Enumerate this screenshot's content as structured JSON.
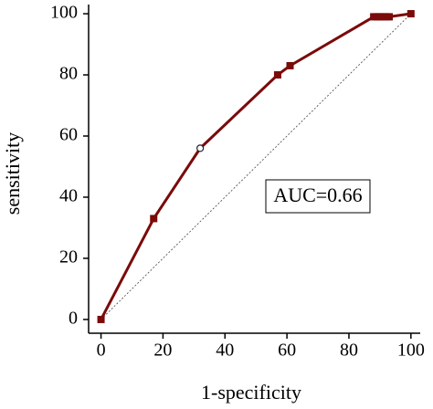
{
  "chart_data": {
    "type": "line",
    "xlabel": "1-specificity",
    "ylabel": "sensitivity",
    "annotation": "AUC=0.66",
    "x": [
      0,
      17,
      32,
      57,
      61,
      88,
      89,
      90,
      91,
      92,
      93,
      100
    ],
    "values": [
      0,
      33,
      56,
      80,
      83,
      99,
      99,
      99,
      99,
      99,
      99,
      100
    ],
    "hollow_marker_index": 2,
    "color": "#7b0a0a",
    "xlim": [
      -4,
      103
    ],
    "ylim": [
      -4.5,
      103
    ],
    "xticks": [
      0,
      20,
      40,
      60,
      80,
      100
    ],
    "yticks": [
      0,
      20,
      40,
      60,
      80,
      100
    ],
    "diagonal": true
  }
}
